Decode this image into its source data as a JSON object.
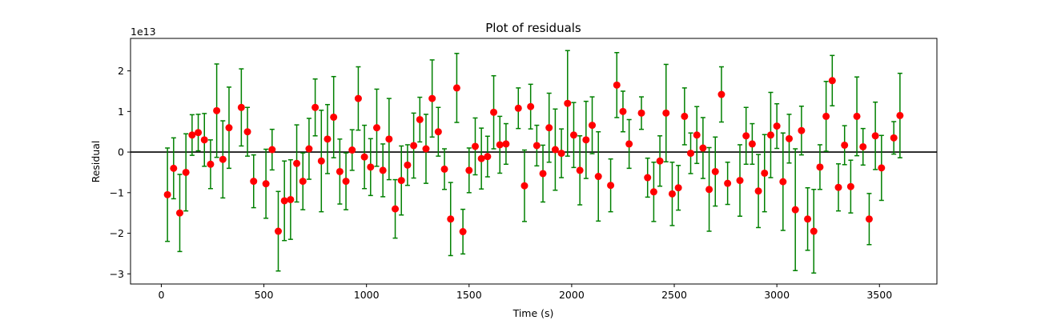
{
  "chart_data": {
    "type": "scatter",
    "title": "Plot of residuals",
    "xlabel": "Time (s)",
    "ylabel": "Residual",
    "y_offset_label": "1e13",
    "xlim": [
      -150,
      3780
    ],
    "ylim": [
      -3.25,
      2.8
    ],
    "xticks": [
      0,
      500,
      1000,
      1500,
      2000,
      2500,
      3000,
      3500
    ],
    "yticks": [
      -3,
      -2,
      -1,
      0,
      1,
      2
    ],
    "reference_line": 0,
    "grid": false,
    "colors": {
      "points": "#ff0000",
      "errorbars": "#008000",
      "zero_line": "#000000"
    },
    "series": [
      {
        "x": [
          30,
          60,
          90,
          120,
          150,
          180,
          210,
          240,
          270,
          300,
          330,
          390,
          420,
          450,
          510,
          540,
          570,
          600,
          630,
          660,
          690,
          720,
          750,
          780,
          810,
          840,
          870,
          900,
          930,
          960,
          990,
          1020,
          1050,
          1080,
          1110,
          1140,
          1170,
          1200,
          1230,
          1260,
          1290,
          1320,
          1350,
          1380,
          1410,
          1440,
          1470,
          1500,
          1530,
          1560,
          1590,
          1620,
          1650,
          1680,
          1740,
          1770,
          1800,
          1830,
          1860,
          1890,
          1920,
          1950,
          1980,
          2010,
          2040,
          2070,
          2100,
          2130,
          2190,
          2220,
          2250,
          2280,
          2340,
          2370,
          2400,
          2430,
          2460,
          2490,
          2520,
          2550,
          2580,
          2610,
          2640,
          2670,
          2700,
          2730,
          2760,
          2820,
          2850,
          2880,
          2910,
          2940,
          2970,
          3000,
          3030,
          3060,
          3090,
          3120,
          3150,
          3180,
          3210,
          3240,
          3270,
          3300,
          3330,
          3360,
          3390,
          3420,
          3450,
          3480,
          3510,
          3570,
          3600
        ],
        "y": [
          -1.05,
          -0.4,
          -1.5,
          -0.5,
          0.42,
          0.48,
          0.3,
          -0.3,
          1.02,
          -0.18,
          0.6,
          1.1,
          0.5,
          -0.72,
          -0.78,
          0.06,
          -1.95,
          -1.2,
          -1.17,
          -0.28,
          -0.72,
          0.08,
          1.1,
          -0.22,
          0.32,
          0.86,
          -0.48,
          -0.72,
          0.05,
          1.32,
          -0.12,
          -0.37,
          0.6,
          -0.45,
          0.32,
          -1.4,
          -0.7,
          -0.32,
          0.16,
          0.8,
          0.08,
          1.32,
          0.5,
          -0.42,
          -1.65,
          1.58,
          -1.96,
          -0.45,
          0.14,
          -0.16,
          -0.11,
          0.98,
          0.18,
          0.2,
          1.08,
          -0.83,
          1.12,
          0.16,
          -0.53,
          0.6,
          0.06,
          -0.03,
          1.2,
          0.42,
          -0.45,
          0.3,
          0.66,
          -0.6,
          -0.82,
          1.65,
          1.0,
          0.2,
          0.96,
          -0.63,
          -0.98,
          -0.22,
          0.96,
          -1.03,
          -0.88,
          0.88,
          -0.03,
          0.42,
          0.1,
          -0.92,
          -0.48,
          1.42,
          -0.77,
          -0.7,
          0.4,
          0.2,
          -0.96,
          -0.52,
          0.42,
          0.64,
          -0.73,
          0.33,
          -1.42,
          0.53,
          -1.65,
          -1.95,
          -0.37,
          0.88,
          1.76,
          -0.87,
          0.17,
          -0.85,
          0.88,
          0.13,
          -1.65,
          0.4,
          -0.39,
          0.35,
          0.9
        ],
        "yerr": [
          1.15,
          0.75,
          0.95,
          0.95,
          0.5,
          0.45,
          0.65,
          0.6,
          1.15,
          0.95,
          1.0,
          0.95,
          0.6,
          0.65,
          0.85,
          0.5,
          0.98,
          0.98,
          0.98,
          0.95,
          0.7,
          0.75,
          0.7,
          1.25,
          0.85,
          1.0,
          0.8,
          0.7,
          0.5,
          0.78,
          0.78,
          0.7,
          0.95,
          0.65,
          1.0,
          0.72,
          0.85,
          0.5,
          0.8,
          0.55,
          0.85,
          0.95,
          0.6,
          0.5,
          0.9,
          0.85,
          0.55,
          0.55,
          0.7,
          0.75,
          0.5,
          0.9,
          0.7,
          0.5,
          0.5,
          0.88,
          0.55,
          0.5,
          0.7,
          0.85,
          1.0,
          0.6,
          1.3,
          0.8,
          0.85,
          0.95,
          0.7,
          1.1,
          0.65,
          0.8,
          0.5,
          0.6,
          0.4,
          0.48,
          0.73,
          0.62,
          1.2,
          0.78,
          0.55,
          0.7,
          0.5,
          0.7,
          0.75,
          1.03,
          0.85,
          0.68,
          0.52,
          0.88,
          0.7,
          0.5,
          0.9,
          0.95,
          1.05,
          0.55,
          1.2,
          0.6,
          1.5,
          0.6,
          0.77,
          1.03,
          0.55,
          0.86,
          0.62,
          0.58,
          0.48,
          0.65,
          0.97,
          0.45,
          0.63,
          0.83,
          0.8,
          0.4,
          1.04
        ]
      }
    ]
  }
}
